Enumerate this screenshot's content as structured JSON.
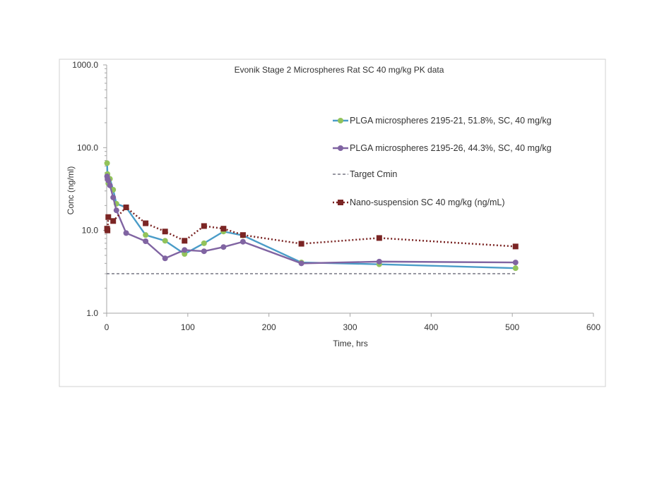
{
  "chart_data": {
    "type": "line",
    "title": "Evonik Stage 2 Microspheres Rat SC 40 mg/kg PK data",
    "xlabel": "Time, hrs",
    "ylabel": "Conc (ng/ml)",
    "xlim": [
      0,
      600
    ],
    "ylim": [
      1,
      1000
    ],
    "yscale": "log",
    "x_ticks": [
      "0",
      "100",
      "200",
      "300",
      "400",
      "500",
      "600"
    ],
    "y_ticks": [
      "1.0",
      "10.0",
      "100.0",
      "1000.0"
    ],
    "grid": false,
    "legend_position": "right",
    "series": [
      {
        "name": "PLGA microspheres 2195-21, 51.8%, SC, 40 mg/kg",
        "color": "#4a9cc8",
        "marker_color": "#92c35b",
        "marker": "circle",
        "line": "solid",
        "points": [
          [
            0.5,
            65
          ],
          [
            1,
            48
          ],
          [
            2,
            37
          ],
          [
            4,
            42
          ],
          [
            8,
            31
          ],
          [
            12,
            21
          ],
          [
            24,
            19
          ],
          [
            48,
            8.8
          ],
          [
            72,
            7.5
          ],
          [
            96,
            5.2
          ],
          [
            120,
            7.0
          ],
          [
            144,
            9.7
          ],
          [
            168,
            8.7
          ],
          [
            240,
            4.1
          ],
          [
            336,
            3.9
          ],
          [
            504,
            3.5
          ]
        ]
      },
      {
        "name": "PLGA microspheres 2195-26, 44.3%, SC, 40 mg/kg",
        "color": "#8064a2",
        "marker_color": "#8064a2",
        "marker": "circle",
        "line": "solid",
        "points": [
          [
            0.5,
            45
          ],
          [
            1,
            42
          ],
          [
            2,
            40
          ],
          [
            4,
            35
          ],
          [
            8,
            25
          ],
          [
            12,
            17.5
          ],
          [
            24,
            9.3
          ],
          [
            48,
            7.4
          ],
          [
            72,
            4.6
          ],
          [
            96,
            5.8
          ],
          [
            120,
            5.6
          ],
          [
            144,
            6.3
          ],
          [
            168,
            7.3
          ],
          [
            240,
            4.0
          ],
          [
            336,
            4.2
          ],
          [
            504,
            4.1
          ]
        ]
      },
      {
        "name": "Target Cmin",
        "color": "#5a5a6a",
        "marker": "none",
        "line": "dashed",
        "points": [
          [
            0,
            3
          ],
          [
            504,
            3
          ]
        ]
      },
      {
        "name": "Nano-suspension SC 40 mg/kg (ng/mL)",
        "color": "#7b2524",
        "marker_color": "#7b2524",
        "marker": "square",
        "line": "dotted",
        "points": [
          [
            0.5,
            10.5
          ],
          [
            1,
            10.0
          ],
          [
            2,
            14.5
          ],
          [
            8,
            13.0
          ],
          [
            24,
            19.0
          ],
          [
            48,
            12.2
          ],
          [
            72,
            9.7
          ],
          [
            96,
            7.5
          ],
          [
            120,
            11.3
          ],
          [
            144,
            10.5
          ],
          [
            168,
            8.8
          ],
          [
            240,
            6.9
          ],
          [
            336,
            8.1
          ],
          [
            504,
            6.4
          ]
        ]
      }
    ]
  }
}
